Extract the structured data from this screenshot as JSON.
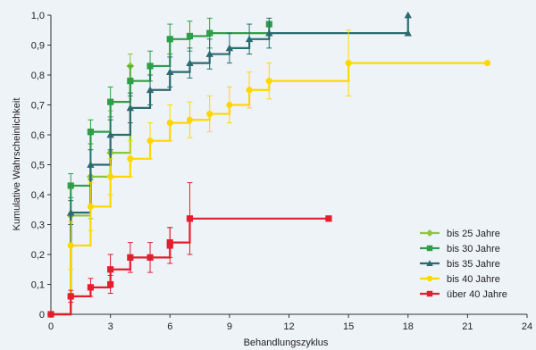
{
  "chart_data": {
    "type": "line",
    "step": true,
    "title": "",
    "xlabel": "Behandlungszyklus",
    "ylabel": "Kumulative Wahrscheinlichkeit",
    "xlim": [
      0,
      24
    ],
    "ylim": [
      0,
      1.0
    ],
    "xticks": [
      0,
      3,
      6,
      9,
      12,
      15,
      18,
      21,
      24
    ],
    "yticks": [
      "0",
      "0,1",
      "0,2",
      "0,3",
      "0,4",
      "0,5",
      "0,6",
      "0,7",
      "0,8",
      "0,9",
      "1,0"
    ],
    "grid": false,
    "legend_position": "bottom-right",
    "series": [
      {
        "name": "bis 25 Jahre",
        "color": "#8cc63f",
        "marker": "diamond",
        "points": [
          [
            1,
            0.33
          ],
          [
            2,
            0.46
          ],
          [
            3,
            0.54
          ],
          [
            4,
            0.83
          ]
        ],
        "errors": [
          0.1,
          0.14,
          0.14,
          0.04
        ]
      },
      {
        "name": "bis 30 Jahre",
        "color": "#2e9e48",
        "marker": "square",
        "points": [
          [
            1,
            0.43
          ],
          [
            2,
            0.61
          ],
          [
            3,
            0.71
          ],
          [
            4,
            0.78
          ],
          [
            5,
            0.83
          ],
          [
            6,
            0.92
          ],
          [
            7,
            0.93
          ],
          [
            8,
            0.94
          ],
          [
            11,
            0.97
          ]
        ],
        "errors": [
          0.04,
          0.04,
          0.05,
          0.05,
          0.05,
          0.05,
          0.05,
          0.05,
          0.0
        ]
      },
      {
        "name": "bis 35 Jahre",
        "color": "#2b6a6e",
        "marker": "triangle",
        "points": [
          [
            1,
            0.34
          ],
          [
            2,
            0.5
          ],
          [
            3,
            0.6
          ],
          [
            4,
            0.69
          ],
          [
            5,
            0.75
          ],
          [
            6,
            0.81
          ],
          [
            7,
            0.84
          ],
          [
            8,
            0.87
          ],
          [
            9,
            0.89
          ],
          [
            10,
            0.92
          ],
          [
            11,
            0.94
          ],
          [
            18,
            1.0
          ]
        ],
        "errors": [
          0.04,
          0.05,
          0.05,
          0.05,
          0.05,
          0.05,
          0.05,
          0.05,
          0.05,
          0.05,
          0.05,
          0.0
        ],
        "end_marker": [
          [
            18,
            0.94
          ]
        ]
      },
      {
        "name": "bis 40 Jahre",
        "color": "#ffd700",
        "marker": "circle",
        "points": [
          [
            1,
            0.23
          ],
          [
            2,
            0.36
          ],
          [
            3,
            0.46
          ],
          [
            4,
            0.52
          ],
          [
            5,
            0.58
          ],
          [
            6,
            0.64
          ],
          [
            7,
            0.65
          ],
          [
            8,
            0.67
          ],
          [
            9,
            0.7
          ],
          [
            10,
            0.75
          ],
          [
            11,
            0.78
          ],
          [
            15,
            0.84
          ],
          [
            22,
            0.84
          ]
        ],
        "errors": [
          0.08,
          0.08,
          0.06,
          0.06,
          0.06,
          0.06,
          0.06,
          0.06,
          0.06,
          0.06,
          0.06,
          0.11,
          0.0
        ]
      },
      {
        "name": "über 40 Jahre",
        "color": "#e31e2d",
        "marker": "square",
        "points": [
          [
            0,
            0.0
          ],
          [
            1,
            0.06
          ],
          [
            2,
            0.09
          ],
          [
            3,
            0.1
          ],
          [
            3,
            0.15
          ],
          [
            4,
            0.19
          ],
          [
            5,
            0.19
          ],
          [
            6,
            0.23
          ],
          [
            6,
            0.24
          ],
          [
            7,
            0.32
          ],
          [
            14,
            0.32
          ]
        ],
        "errors": [
          0.0,
          0.02,
          0.03,
          0.03,
          0.05,
          0.05,
          0.05,
          0.06,
          0.05,
          0.12,
          0.0
        ]
      }
    ]
  }
}
